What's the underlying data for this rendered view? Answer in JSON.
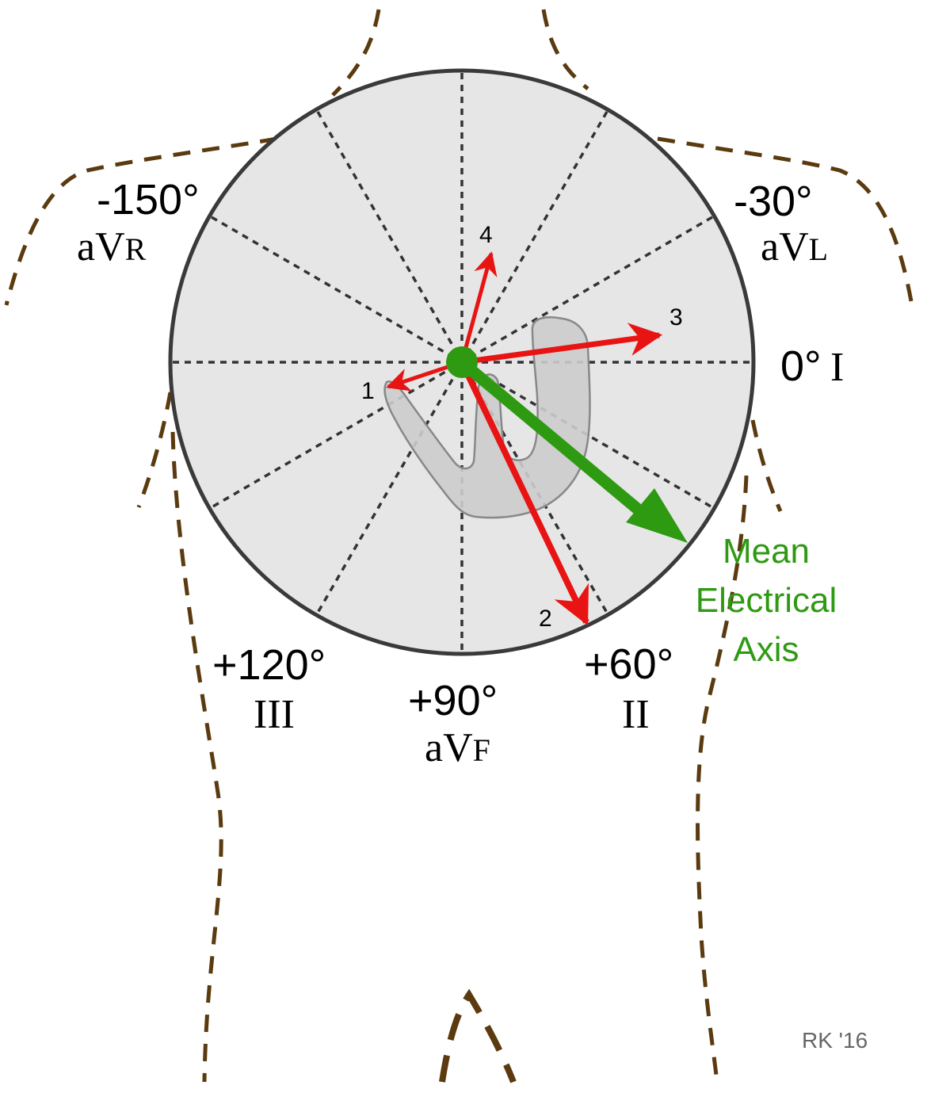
{
  "diagram": {
    "axis_labels": [
      {
        "id": "avr",
        "degrees": "-150°",
        "lead_main": "aV",
        "lead_sub": "R"
      },
      {
        "id": "avl",
        "degrees": "-30°",
        "lead_main": "aV",
        "lead_sub": "L"
      },
      {
        "id": "i",
        "degrees": "0°",
        "lead": "I"
      },
      {
        "id": "ii",
        "degrees": "+60°",
        "lead": "II"
      },
      {
        "id": "avf",
        "degrees": "+90°",
        "lead_main": "aV",
        "lead_sub": "F"
      },
      {
        "id": "iii",
        "degrees": "+120°",
        "lead": "III"
      }
    ],
    "vectors": [
      {
        "label": "1",
        "color": "#e81414"
      },
      {
        "label": "2",
        "color": "#e81414"
      },
      {
        "label": "3",
        "color": "#e81414"
      },
      {
        "label": "4",
        "color": "#e81414"
      }
    ],
    "mean_axis": {
      "label_lines": [
        "Mean",
        "Electrical",
        "Axis"
      ],
      "color": "#2e9a12"
    },
    "colors": {
      "circle_fill": "#e6e6e6",
      "body_outline": "#5a3a0e",
      "heart_fill": "#cccccc"
    },
    "credit": "RK '16"
  }
}
